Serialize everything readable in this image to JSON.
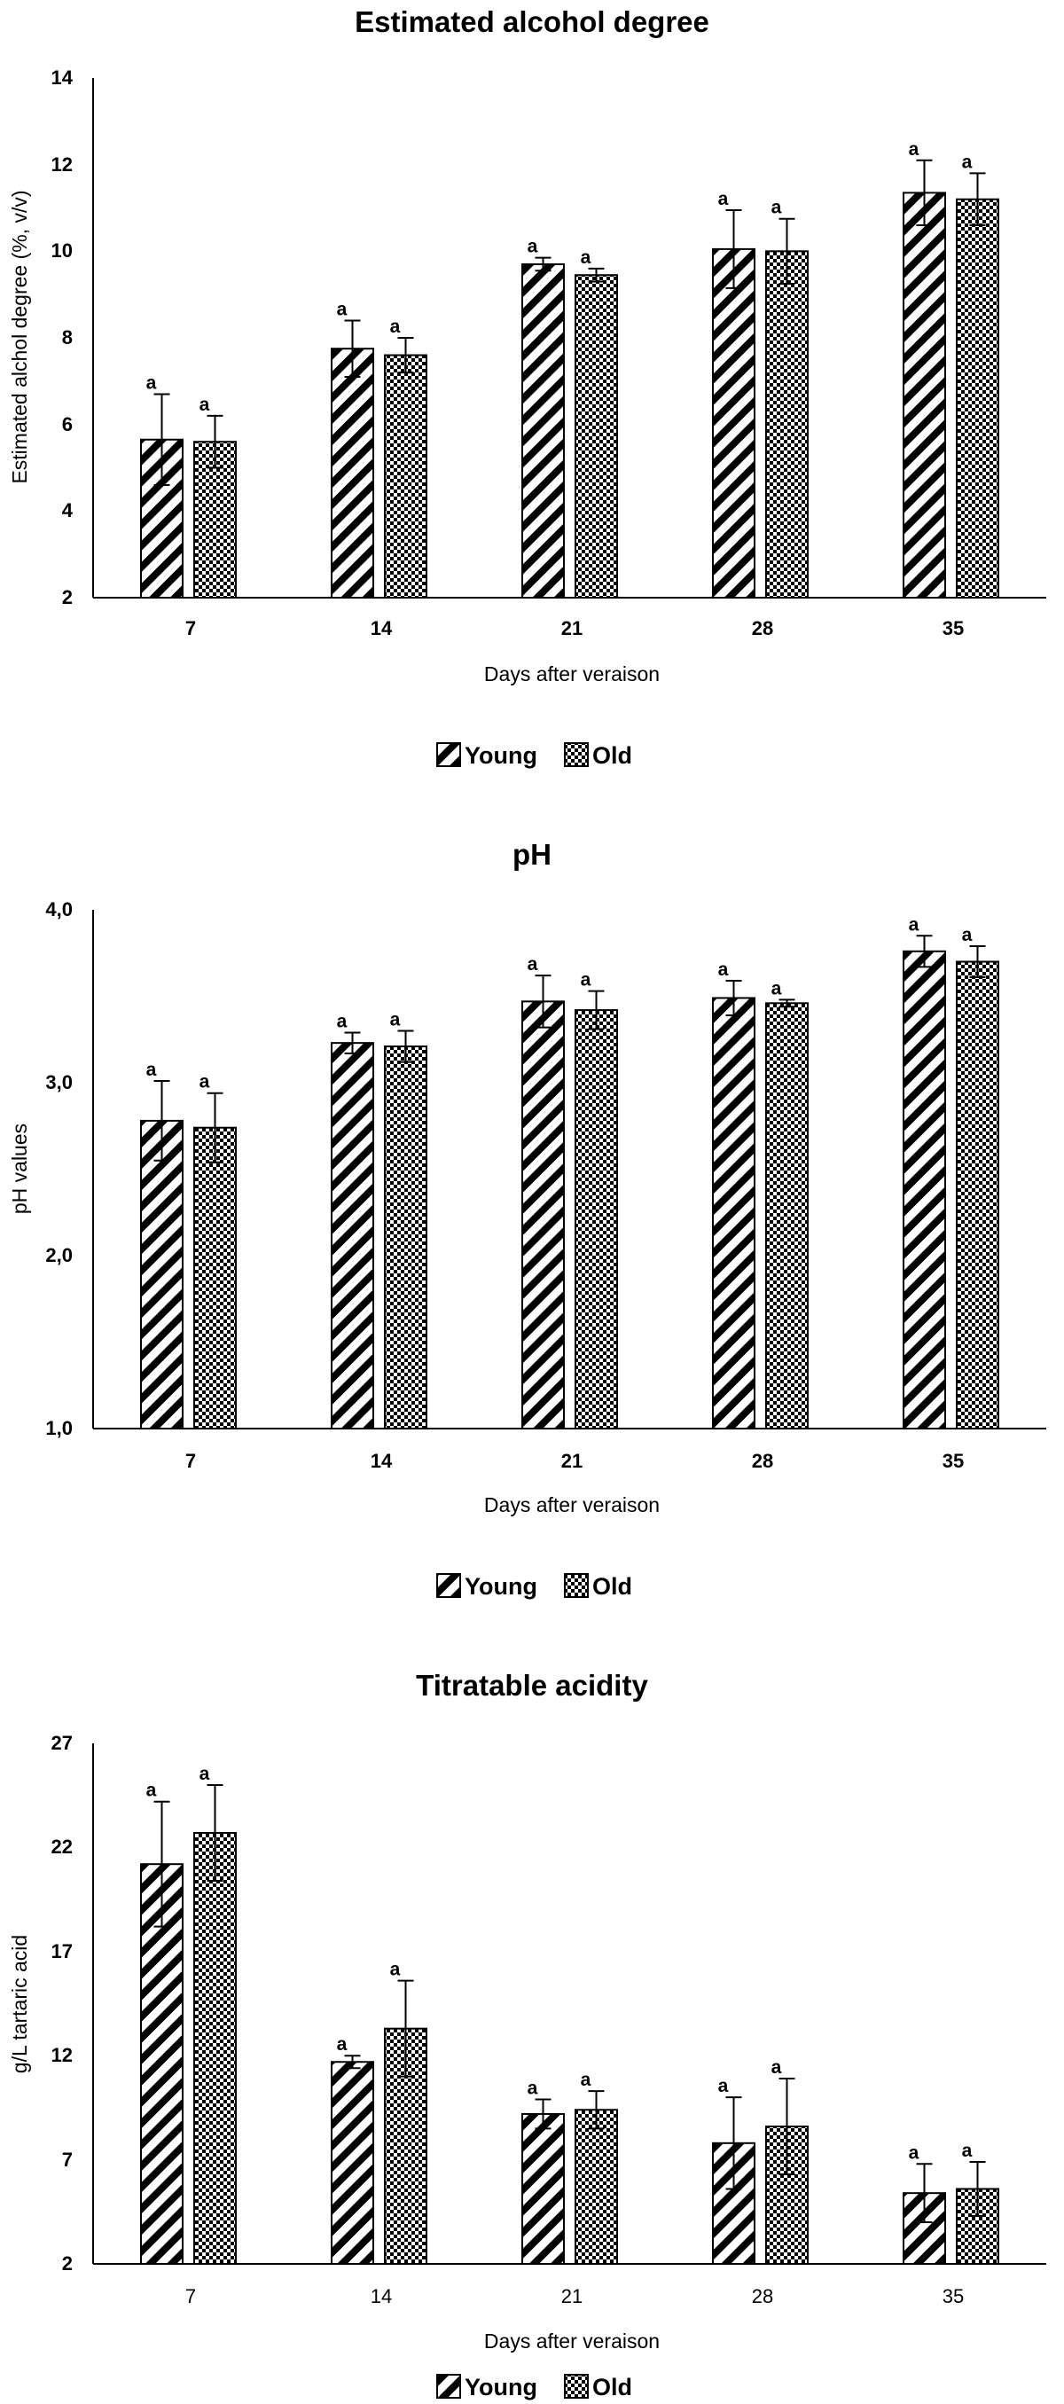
{
  "chart_data": [
    {
      "type": "bar",
      "title": "Estimated alcohol degree",
      "xlabel": "Days after veraison",
      "ylabel": "Estimated alchol degree (%, v/v)",
      "categories": [
        "7",
        "14",
        "21",
        "28",
        "35"
      ],
      "ylim": [
        2,
        14
      ],
      "yticks": [
        "2",
        "4",
        "6",
        "8",
        "10",
        "12",
        "14"
      ],
      "grid": false,
      "legend": "bottom",
      "series": [
        {
          "name": "Young",
          "pattern": "diagonal-stripes",
          "values": [
            5.65,
            7.75,
            9.7,
            10.05,
            11.35
          ],
          "errors": [
            1.05,
            0.65,
            0.15,
            0.9,
            0.75
          ],
          "labels": [
            "a",
            "a",
            "a",
            "a",
            "a"
          ]
        },
        {
          "name": "Old",
          "pattern": "checkered",
          "values": [
            5.6,
            7.6,
            9.45,
            10.0,
            11.2
          ],
          "errors": [
            0.6,
            0.4,
            0.15,
            0.75,
            0.6
          ],
          "labels": [
            "a",
            "a",
            "a",
            "a",
            "a"
          ]
        }
      ]
    },
    {
      "type": "bar",
      "title": "pH",
      "xlabel": "Days after veraison",
      "ylabel": "pH values",
      "categories": [
        "7",
        "14",
        "21",
        "28",
        "35"
      ],
      "ylim": [
        1,
        4
      ],
      "yticks": [
        "1,0",
        "2,0",
        "3,0",
        "4,0"
      ],
      "grid": false,
      "legend": "bottom",
      "series": [
        {
          "name": "Young",
          "pattern": "diagonal-stripes",
          "values": [
            2.78,
            3.23,
            3.47,
            3.49,
            3.76
          ],
          "errors": [
            0.23,
            0.06,
            0.15,
            0.1,
            0.09
          ],
          "labels": [
            "a",
            "a",
            "a",
            "a",
            "a"
          ]
        },
        {
          "name": "Old",
          "pattern": "checkered",
          "values": [
            2.74,
            3.21,
            3.42,
            3.46,
            3.7
          ],
          "errors": [
            0.2,
            0.09,
            0.11,
            0.02,
            0.09
          ],
          "labels": [
            "a",
            "a",
            "a",
            "a",
            "a"
          ]
        }
      ]
    },
    {
      "type": "bar",
      "title": "Titratable acidity",
      "xlabel": "Days after veraison",
      "ylabel": "g/L tartaric acid",
      "categories": [
        "7",
        "14",
        "21",
        "28",
        "35"
      ],
      "ylim": [
        2,
        27
      ],
      "yticks": [
        "2",
        "7",
        "12",
        "17",
        "22",
        "27"
      ],
      "grid": false,
      "legend": "bottom",
      "series": [
        {
          "name": "Young",
          "pattern": "diagonal-stripes",
          "values": [
            21.2,
            11.7,
            9.2,
            7.8,
            5.4
          ],
          "errors": [
            3.0,
            0.3,
            0.7,
            2.2,
            1.4
          ],
          "labels": [
            "a",
            "a",
            "a",
            "a",
            "a"
          ]
        },
        {
          "name": "Old",
          "pattern": "checkered",
          "values": [
            22.7,
            13.3,
            9.4,
            8.6,
            5.6
          ],
          "errors": [
            2.3,
            2.3,
            0.9,
            2.3,
            1.3
          ],
          "labels": [
            "a",
            "a",
            "a",
            "a",
            "a"
          ]
        }
      ]
    }
  ]
}
